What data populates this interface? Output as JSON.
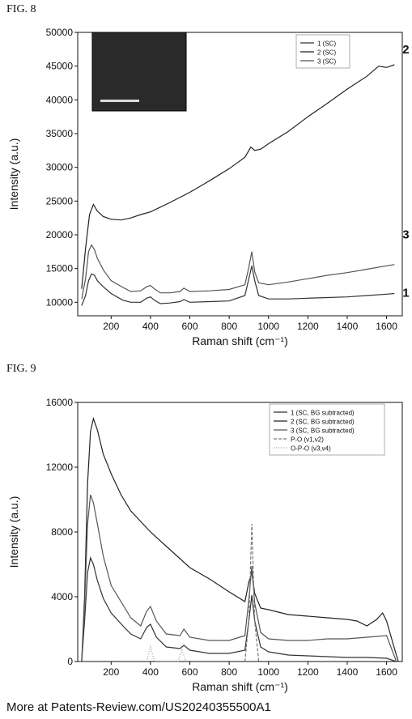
{
  "figures": {
    "fig8_label": "FIG. 8",
    "fig9_label": "FIG. 9"
  },
  "footer": "More at Patents-Review.com/US20240355500A1",
  "chart_data": [
    {
      "type": "line",
      "xlabel": "Raman shift (cm⁻¹)",
      "ylabel": "Intensity (a.u.)",
      "xlim": [
        30,
        1680
      ],
      "ylim": [
        8000,
        50000
      ],
      "xticks": [
        200,
        400,
        600,
        800,
        1000,
        1200,
        1400,
        1600
      ],
      "yticks": [
        10000,
        15000,
        20000,
        25000,
        30000,
        35000,
        40000,
        45000,
        50000
      ],
      "legend_position": "top-right",
      "inset_image": true,
      "series": [
        {
          "name": "1 (SC)",
          "curve_label": "1",
          "color": "#333333",
          "x": [
            50,
            70,
            85,
            100,
            115,
            130,
            160,
            200,
            260,
            300,
            350,
            380,
            400,
            420,
            450,
            500,
            550,
            570,
            600,
            700,
            800,
            880,
            900,
            915,
            930,
            950,
            1000,
            1100,
            1200,
            1300,
            1400,
            1500,
            1600,
            1640
          ],
          "y": [
            9500,
            11000,
            13200,
            14200,
            14000,
            13200,
            12300,
            11300,
            10300,
            10000,
            10000,
            10600,
            10800,
            10300,
            9800,
            9900,
            10100,
            10400,
            10000,
            10100,
            10200,
            11000,
            13500,
            15400,
            13200,
            11000,
            10500,
            10500,
            10600,
            10700,
            10800,
            11000,
            11200,
            11300
          ]
        },
        {
          "name": "2 (SC)",
          "curve_label": "2",
          "color": "#222222",
          "x": [
            50,
            70,
            90,
            110,
            130,
            160,
            200,
            250,
            300,
            350,
            400,
            500,
            600,
            700,
            800,
            880,
            910,
            930,
            960,
            1000,
            1100,
            1200,
            1300,
            1400,
            1500,
            1560,
            1580,
            1600,
            1640
          ],
          "y": [
            12000,
            18000,
            23000,
            24500,
            23500,
            22700,
            22300,
            22200,
            22500,
            23000,
            23400,
            24800,
            26300,
            28000,
            29800,
            31500,
            33000,
            32500,
            32700,
            33500,
            35300,
            37500,
            39500,
            41600,
            43500,
            45000,
            44900,
            44800,
            45200
          ]
        },
        {
          "name": "3 (SC)",
          "curve_label": "3",
          "color": "#555555",
          "x": [
            50,
            70,
            85,
            100,
            115,
            130,
            160,
            200,
            260,
            300,
            350,
            380,
            400,
            420,
            450,
            500,
            550,
            570,
            600,
            700,
            800,
            880,
            900,
            915,
            930,
            950,
            1000,
            1100,
            1200,
            1300,
            1400,
            1500,
            1600,
            1640
          ],
          "y": [
            10500,
            13500,
            17500,
            18500,
            17800,
            16500,
            14800,
            13200,
            12200,
            11600,
            11700,
            12300,
            12500,
            12000,
            11400,
            11400,
            11600,
            12100,
            11600,
            11700,
            11900,
            12600,
            15200,
            17500,
            14500,
            12900,
            12600,
            13000,
            13500,
            14000,
            14400,
            14900,
            15400,
            15600
          ]
        }
      ]
    },
    {
      "type": "line",
      "xlabel": "Raman shift (cm⁻¹)",
      "ylabel": "Intensity (a.u.)",
      "xlim": [
        30,
        1680
      ],
      "ylim": [
        0,
        16000
      ],
      "xticks": [
        200,
        400,
        600,
        800,
        1000,
        1200,
        1400,
        1600
      ],
      "yticks": [
        0,
        4000,
        8000,
        12000,
        16000
      ],
      "legend_position": "top-right",
      "series": [
        {
          "name": "1 (SC, BG subtracted)",
          "color": "#333333",
          "x": [
            50,
            65,
            80,
            95,
            110,
            130,
            160,
            200,
            260,
            300,
            350,
            380,
            400,
            430,
            480,
            550,
            570,
            600,
            700,
            800,
            880,
            900,
            915,
            930,
            960,
            1000,
            1100,
            1200,
            1300,
            1400,
            1500,
            1600,
            1650
          ],
          "y": [
            0,
            2500,
            5500,
            6400,
            6000,
            5000,
            3900,
            3000,
            2200,
            1700,
            1400,
            2100,
            2300,
            1500,
            900,
            800,
            1000,
            700,
            500,
            500,
            700,
            2500,
            4100,
            2500,
            900,
            600,
            400,
            350,
            300,
            250,
            250,
            200,
            0
          ]
        },
        {
          "name": "2 (SC, BG subtracted)",
          "color": "#222222",
          "x": [
            50,
            65,
            80,
            95,
            110,
            130,
            160,
            200,
            250,
            300,
            400,
            500,
            600,
            700,
            800,
            880,
            900,
            915,
            930,
            960,
            1000,
            1100,
            1200,
            1300,
            1400,
            1450,
            1500,
            1550,
            1580,
            1600,
            1640,
            1660
          ],
          "y": [
            0,
            4000,
            11000,
            14200,
            15000,
            14300,
            12800,
            11600,
            10300,
            9300,
            8000,
            6900,
            5800,
            5100,
            4300,
            3700,
            4900,
            5500,
            4200,
            3300,
            3200,
            2900,
            2800,
            2700,
            2600,
            2500,
            2200,
            2600,
            3000,
            2500,
            800,
            0
          ]
        },
        {
          "name": "3 (SC, BG subtracted)",
          "color": "#555555",
          "x": [
            50,
            65,
            80,
            95,
            110,
            130,
            160,
            200,
            260,
            300,
            350,
            380,
            400,
            430,
            480,
            550,
            570,
            600,
            700,
            800,
            880,
            900,
            915,
            930,
            960,
            1000,
            1100,
            1200,
            1300,
            1400,
            1500,
            1600,
            1650
          ],
          "y": [
            0,
            3500,
            8500,
            10300,
            9800,
            8500,
            6500,
            4700,
            3500,
            2700,
            2200,
            3100,
            3400,
            2500,
            1700,
            1600,
            2000,
            1500,
            1300,
            1300,
            1600,
            3800,
            5900,
            3600,
            1800,
            1400,
            1300,
            1300,
            1400,
            1400,
            1500,
            1600,
            0
          ]
        },
        {
          "name": "P-O (v1,v2)",
          "color": "#777777",
          "style": "dashed",
          "x": [
            880,
            900,
            915,
            930,
            950
          ],
          "y": [
            0,
            2500,
            8500,
            2500,
            0
          ]
        },
        {
          "name": "O-P-O (v3,v4)",
          "color": "#999999",
          "style": "dotted",
          "x": [
            380,
            400,
            420,
            540,
            560,
            580
          ],
          "y": [
            0,
            900,
            0,
            0,
            700,
            0
          ]
        }
      ]
    }
  ],
  "palette": {
    "axis": "#111111",
    "inset_bg": "#2a2a2a"
  }
}
